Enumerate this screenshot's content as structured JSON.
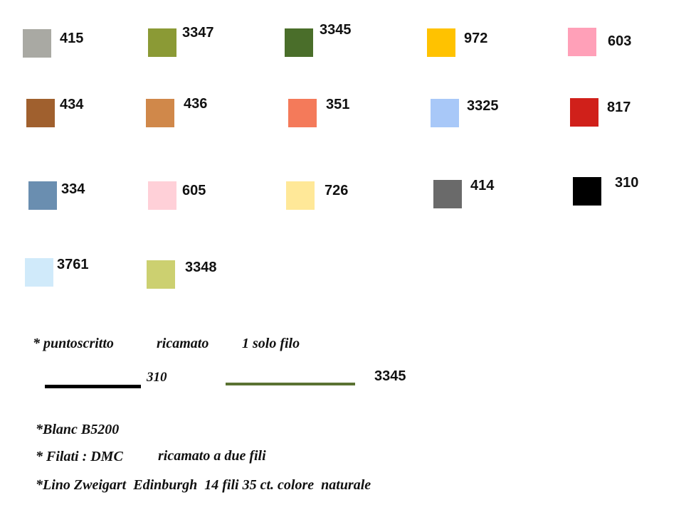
{
  "swatches": [
    {
      "code": "415",
      "color": "#a9a9a3"
    },
    {
      "code": "3347",
      "color": "#8b9a35"
    },
    {
      "code": "3345",
      "color": "#4a6e2a"
    },
    {
      "code": "972",
      "color": "#ffc200"
    },
    {
      "code": "603",
      "color": "#ffa0b8"
    },
    {
      "code": "434",
      "color": "#a0602e"
    },
    {
      "code": "436",
      "color": "#d0884a"
    },
    {
      "code": "351",
      "color": "#f47a5a"
    },
    {
      "code": "3325",
      "color": "#a8c8f8"
    },
    {
      "code": "817",
      "color": "#d0201a"
    },
    {
      "code": "334",
      "color": "#6a8eb0"
    },
    {
      "code": "605",
      "color": "#ffd0d8"
    },
    {
      "code": "726",
      "color": "#ffe898"
    },
    {
      "code": "414",
      "color": "#6a6a6a"
    },
    {
      "code": "310",
      "color": "#000000"
    },
    {
      "code": "3761",
      "color": "#d0eafa"
    },
    {
      "code": "3348",
      "color": "#ccd070"
    }
  ],
  "backstitch": {
    "heading": [
      "* puntoscritto",
      "ricamato",
      "1 solo filo"
    ],
    "lines": [
      {
        "code": "310",
        "color": "#000000"
      },
      {
        "code": "3345",
        "color": "#5a7232"
      }
    ]
  },
  "notes": [
    [
      "*Blanc B5200"
    ],
    [
      "* Filati : DMC",
      "ricamato a due fili"
    ],
    [
      "*Lino Zweigart  Edinburgh  14 fili 35 ct. colore  naturale"
    ]
  ]
}
